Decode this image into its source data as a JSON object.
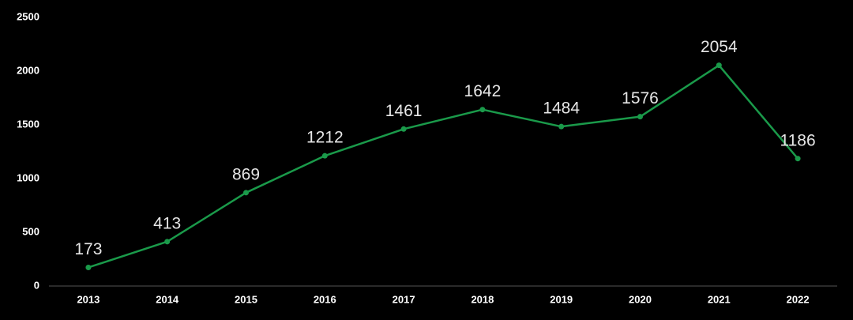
{
  "chart_data": {
    "type": "line",
    "categories": [
      "2013",
      "2014",
      "2015",
      "2016",
      "2017",
      "2018",
      "2019",
      "2020",
      "2021",
      "2022"
    ],
    "values": [
      173,
      413,
      869,
      1212,
      1461,
      1642,
      1484,
      1576,
      2054,
      1186
    ],
    "color": "#1a9a4a",
    "ylim": [
      0,
      2500
    ],
    "yticks": [
      0,
      500,
      1000,
      1500,
      2000,
      2500
    ],
    "grid": false
  }
}
